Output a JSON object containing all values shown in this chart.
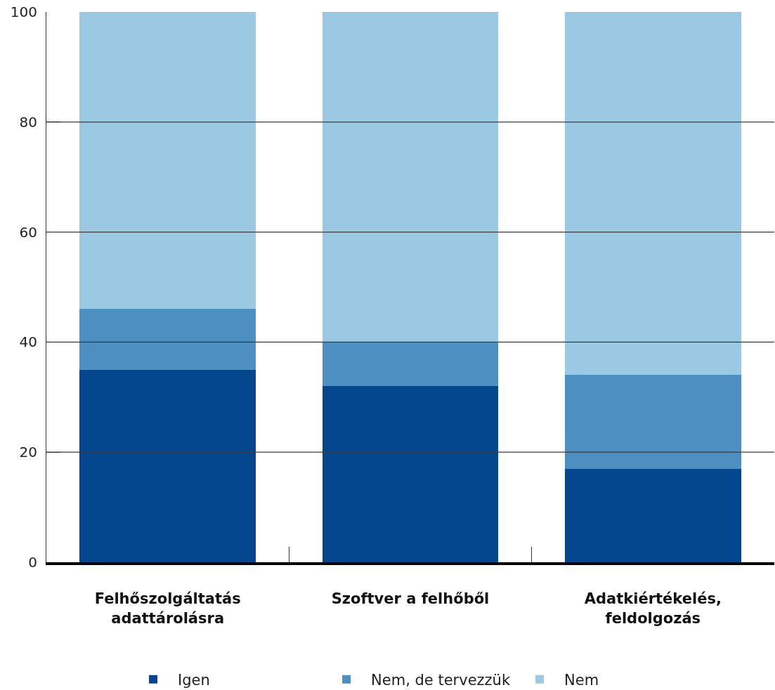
{
  "chart_data": {
    "type": "bar",
    "stacked": true,
    "categories": [
      "Felhőszolgáltatás\nadattárolásra",
      "Szoftver a felhőből",
      "Adatkiértékelés,\nfeldolgozás"
    ],
    "series": [
      {
        "name": "Igen",
        "color": "#04478f",
        "values": [
          35,
          32,
          17
        ]
      },
      {
        "name": "Nem, de tervezzük",
        "color": "#4e8fc2",
        "values": [
          11,
          8,
          17
        ]
      },
      {
        "name": "Nem",
        "color": "#9bc8e2",
        "values": [
          54,
          60,
          66
        ]
      }
    ],
    "ylim": [
      0,
      100
    ],
    "yticks": [
      0,
      20,
      40,
      60,
      80,
      100
    ],
    "grid": "y",
    "legend": "bottom"
  }
}
